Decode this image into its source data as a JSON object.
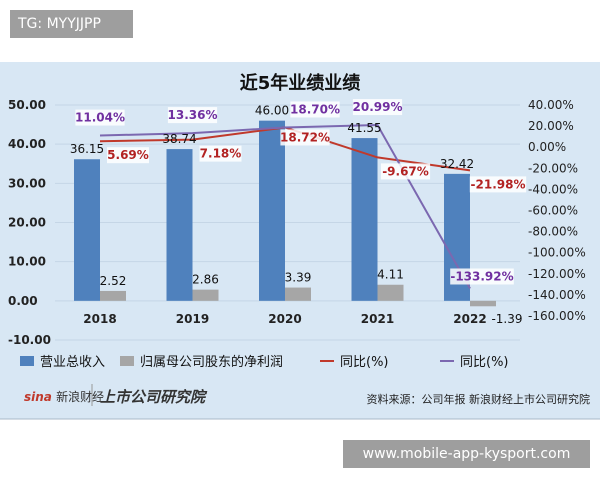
{
  "overlay_tag": "TG: MYYJJPP",
  "site_label": "www.mobile-app-kysport.com",
  "chart_data": {
    "type": "bar",
    "title": "近5年业绩业绩",
    "categories": [
      "2018",
      "2019",
      "2020",
      "2021",
      "2022"
    ],
    "y_left": {
      "range": [
        -10,
        50
      ],
      "ticks": [
        "50.00",
        "40.00",
        "30.00",
        "20.00",
        "10.00",
        "0.00",
        "-10.00"
      ]
    },
    "y_right": {
      "range": [
        -160,
        40
      ],
      "ticks": [
        "40.00%",
        "20.00%",
        "0.00%",
        "-20.00%",
        "-40.00%",
        "-60.00%",
        "-80.00%",
        "-100.00%",
        "-120.00%",
        "-140.00%",
        "-160.00%"
      ]
    },
    "grid": true,
    "legend_placement": "bottom",
    "series": [
      {
        "name": "营业总收入",
        "kind": "bar",
        "axis": "left",
        "color": "#4f81bd",
        "values": [
          36.15,
          38.74,
          46.0,
          41.55,
          32.42
        ],
        "labels": [
          "36.15",
          "38.74",
          "46.00",
          "41.55",
          "32.42"
        ]
      },
      {
        "name": "归属母公司股东的净利润",
        "kind": "bar",
        "axis": "left",
        "color": "#a6a6a6",
        "values": [
          2.52,
          2.86,
          3.39,
          4.11,
          -1.39
        ],
        "labels": [
          "2.52",
          "2.86",
          "3.39",
          "4.11",
          "-1.39"
        ]
      },
      {
        "name": "同比(%)",
        "kind": "line",
        "axis": "right",
        "color": "#c0392b",
        "label_color": "#b22222",
        "values": [
          5.69,
          7.18,
          18.72,
          -9.67,
          -21.98
        ],
        "labels": [
          "5.69%",
          "7.18%",
          "18.72%",
          "-9.67%",
          "-21.98%"
        ]
      },
      {
        "name": "同比(%)",
        "kind": "line",
        "axis": "right",
        "color": "#7b68b0",
        "label_color": "#7030a0",
        "values": [
          11.04,
          13.36,
          18.7,
          20.99,
          -133.92
        ],
        "labels": [
          "11.04%",
          "13.36%",
          "18.70%",
          "20.99%",
          "-133.92%"
        ]
      }
    ],
    "source": "资料来源：公司年报 新浪财经上市公司研究院",
    "logos": [
      "sina 新浪财经",
      "上市公司研究院"
    ]
  }
}
